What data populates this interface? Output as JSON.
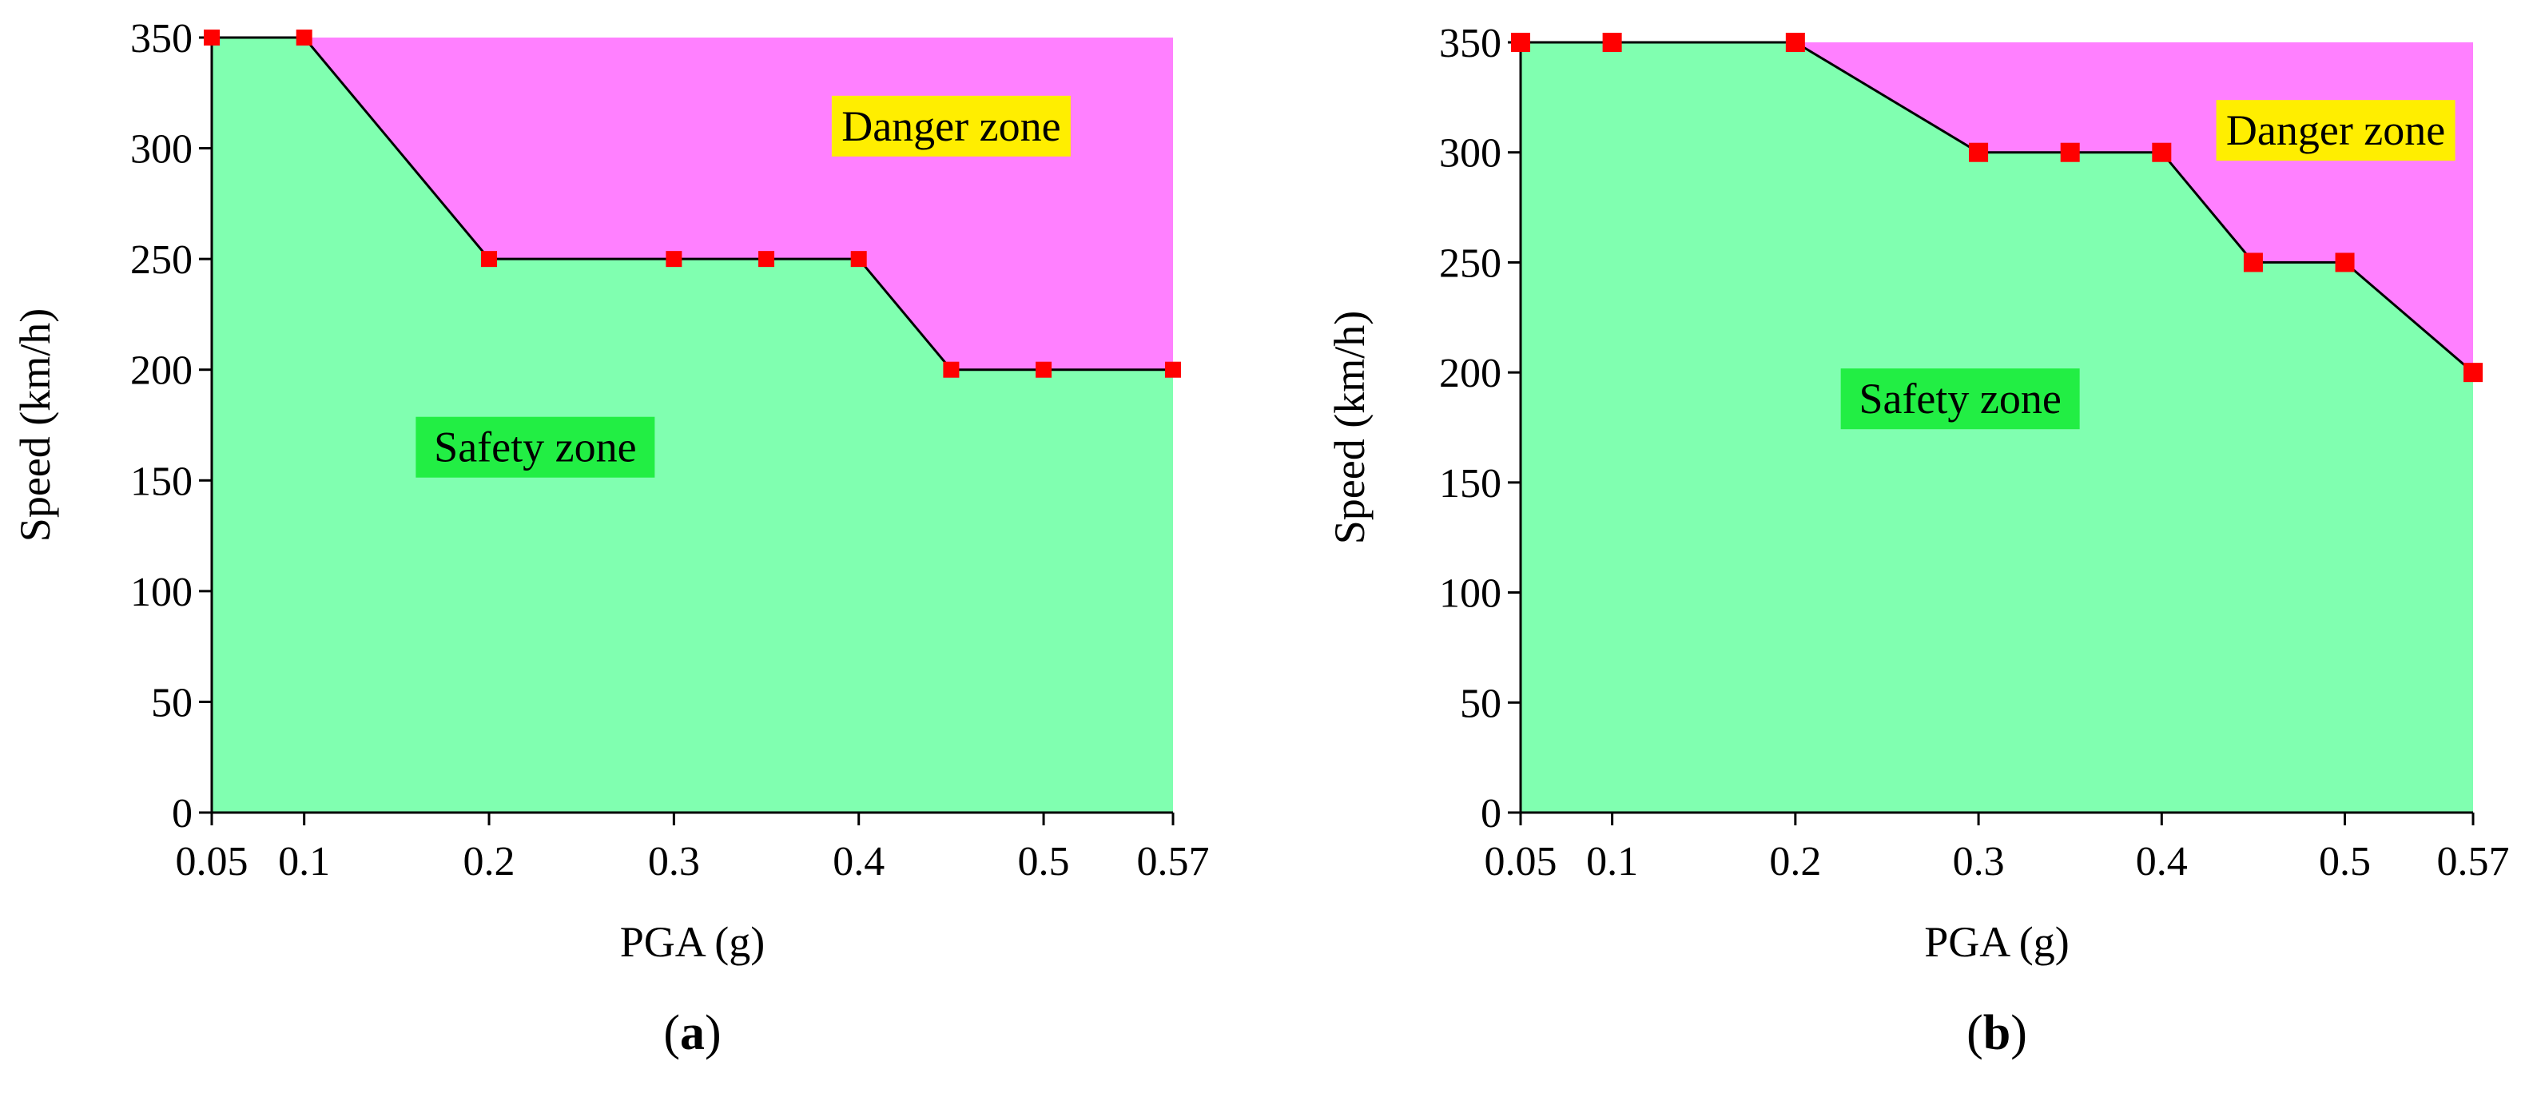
{
  "figure": {
    "colors": {
      "safety_fill": "#80ffb0",
      "danger_fill": "#ff80ff",
      "safety_label_bg": "#22ee44",
      "danger_label_bg": "#ffee00",
      "marker": "#ff0000",
      "boundary_line": "#000000"
    }
  },
  "chart_data": [
    {
      "type": "area",
      "panel_label": "a",
      "xlabel": "PGA (g)",
      "ylabel": "Speed (km/h)",
      "xlim": [
        0.05,
        0.57
      ],
      "ylim": [
        0,
        350
      ],
      "x_ticks": [
        "0.05",
        "0.1",
        "0.2",
        "0.3",
        "0.4",
        "0.5",
        "0.57"
      ],
      "y_ticks": [
        "0",
        "50",
        "100",
        "150",
        "200",
        "250",
        "300",
        "350"
      ],
      "grid": false,
      "regions": [
        {
          "name": "Safety zone",
          "position": "below boundary"
        },
        {
          "name": "Danger zone",
          "position": "above boundary"
        }
      ],
      "series": [
        {
          "x": [
            0.05,
            0.1,
            0.2,
            0.3,
            0.35,
            0.4,
            0.45,
            0.5,
            0.57
          ],
          "values": [
            350,
            350,
            250,
            250,
            250,
            250,
            200,
            200,
            200
          ]
        }
      ]
    },
    {
      "type": "area",
      "panel_label": "b",
      "xlabel": "PGA (g)",
      "ylabel": "Speed (km/h)",
      "xlim": [
        0.05,
        0.57
      ],
      "ylim": [
        0,
        350
      ],
      "x_ticks": [
        "0.05",
        "0.1",
        "0.2",
        "0.3",
        "0.4",
        "0.5",
        "0.57"
      ],
      "y_ticks": [
        "0",
        "50",
        "100",
        "150",
        "200",
        "250",
        "300",
        "350"
      ],
      "grid": false,
      "regions": [
        {
          "name": "Safety zone",
          "position": "below boundary"
        },
        {
          "name": "Danger zone",
          "position": "above boundary"
        }
      ],
      "series": [
        {
          "x": [
            0.05,
            0.1,
            0.2,
            0.3,
            0.35,
            0.4,
            0.45,
            0.5,
            0.57
          ],
          "values": [
            350,
            350,
            350,
            300,
            300,
            300,
            250,
            250,
            200
          ]
        }
      ]
    }
  ]
}
